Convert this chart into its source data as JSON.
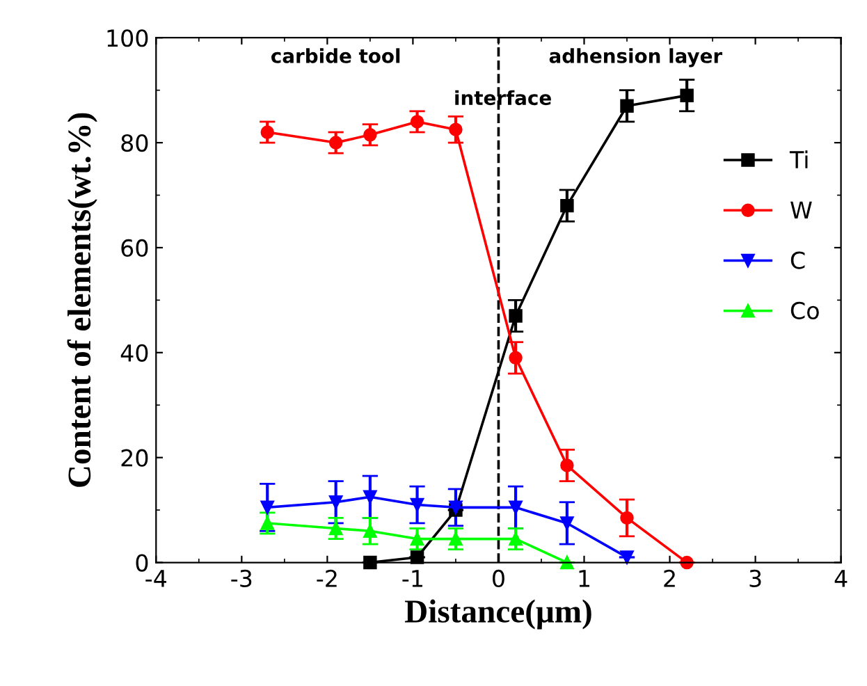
{
  "chart_data": {
    "type": "line",
    "xlabel": "Distance(μm)",
    "ylabel": "Content of elements(wt.%)",
    "xlim": [
      -4,
      4
    ],
    "xticks": [
      -4,
      -3,
      -2,
      -1,
      0,
      1,
      2,
      3,
      4
    ],
    "ylim": [
      0,
      100
    ],
    "yticks": [
      0,
      20,
      40,
      60,
      80,
      100
    ],
    "grid": false,
    "legend": "right",
    "line_style": "solid",
    "ref_lines": [
      {
        "axis": "x",
        "value": 0,
        "color": "#000000",
        "line_style": "dashed"
      }
    ],
    "annotations": [
      "carbide tool",
      "interface",
      "adhension layer"
    ],
    "series": [
      {
        "name": "Ti",
        "color": "#000000",
        "marker": "square",
        "x": [
          -1.5,
          -0.95,
          -0.5,
          0.2,
          0.8,
          1.5,
          2.2
        ],
        "values": [
          0,
          1,
          10,
          47,
          68,
          87,
          89
        ],
        "errors": [
          null,
          null,
          null,
          3,
          3,
          3,
          3
        ]
      },
      {
        "name": "W",
        "color": "#ff0000",
        "marker": "circle",
        "x": [
          -2.7,
          -1.9,
          -1.5,
          -0.95,
          -0.5,
          0.2,
          0.8,
          1.5,
          2.2
        ],
        "values": [
          82,
          80,
          81.5,
          84,
          82.5,
          39,
          18.5,
          8.5,
          0
        ],
        "errors": [
          2,
          2,
          2,
          2,
          2.5,
          3,
          3,
          3.5,
          null
        ]
      },
      {
        "name": "C",
        "color": "#0000ff",
        "marker": "triangle_down",
        "x": [
          -2.7,
          -1.9,
          -1.5,
          -0.95,
          -0.5,
          0.2,
          0.8,
          1.5
        ],
        "values": [
          10.5,
          11.5,
          12.5,
          11,
          10.5,
          10.5,
          7.5,
          1
        ],
        "errors": [
          4.5,
          4,
          4,
          3.5,
          3.5,
          4,
          4,
          null
        ]
      },
      {
        "name": "Co",
        "color": "#00ff00",
        "marker": "triangle",
        "x": [
          -2.7,
          -1.9,
          -1.5,
          -0.95,
          -0.5,
          0.2,
          0.8
        ],
        "values": [
          7.5,
          6.5,
          6,
          4.5,
          4.5,
          4.5,
          0
        ],
        "errors": [
          2,
          2,
          2.5,
          2,
          2,
          2,
          null
        ]
      }
    ]
  }
}
